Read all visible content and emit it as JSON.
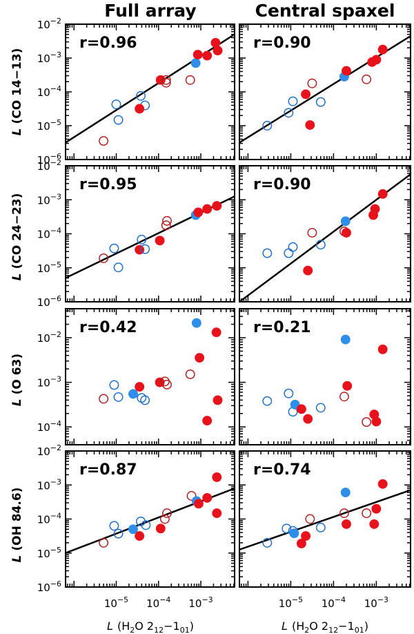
{
  "colors": {
    "red": "#e8121c",
    "blue": "#2f8ee8",
    "open_red": "#b02020",
    "open_blue": "#1f6fc8"
  },
  "column_titles": [
    "Full array",
    "Central spaxel"
  ],
  "row_ylabels": [
    {
      "var": "L",
      "text": "(CO 14−13)"
    },
    {
      "var": "L",
      "text": "(CO 24−23)"
    },
    {
      "var": "L",
      "text": "(O 63)"
    },
    {
      "var": "L",
      "text": "(OH 84.6)"
    }
  ],
  "x_axis": {
    "var": "L",
    "label_pre": "(H",
    "sub": "2",
    "label_mid": "O 2",
    "sub2": "12",
    "label_dash": "−1",
    "sub3": "01",
    "label_post": ")",
    "tick_exps": [
      "−5",
      "−4",
      "−3"
    ],
    "tick_base": "10"
  },
  "chart_data": [
    {
      "type": "scatter",
      "title": "Full array",
      "ylabel": "L (CO 14−13)",
      "r": "r=0.96",
      "xlim_log": [
        -6.2,
        -2.2
      ],
      "ylim_log": [
        -6,
        -2
      ],
      "ytick_exps": [
        "−6",
        "−5",
        "−4",
        "−3",
        "−2"
      ],
      "fit": [
        [
          -6.2,
          -5.5
        ],
        [
          -2.2,
          -2.3
        ]
      ],
      "points": [
        {
          "x": -5.3,
          "y": -5.45,
          "c": "red",
          "f": false
        },
        {
          "x": -5.0,
          "y": -4.37,
          "c": "blue",
          "f": false
        },
        {
          "x": -4.95,
          "y": -4.83,
          "c": "blue",
          "f": false
        },
        {
          "x": -4.42,
          "y": -4.12,
          "c": "blue",
          "f": false
        },
        {
          "x": -4.32,
          "y": -4.4,
          "c": "blue",
          "f": false
        },
        {
          "x": -4.45,
          "y": -4.5,
          "c": "red",
          "f": true
        },
        {
          "x": -3.95,
          "y": -3.65,
          "c": "red",
          "f": true
        },
        {
          "x": -3.82,
          "y": -3.73,
          "c": "red",
          "f": false
        },
        {
          "x": -3.82,
          "y": -3.65,
          "c": "red",
          "f": false
        },
        {
          "x": -3.25,
          "y": -3.65,
          "c": "red",
          "f": false
        },
        {
          "x": -3.12,
          "y": -3.15,
          "c": "blue",
          "f": true
        },
        {
          "x": -3.07,
          "y": -2.9,
          "c": "red",
          "f": true
        },
        {
          "x": -2.85,
          "y": -2.93,
          "c": "red",
          "f": true
        },
        {
          "x": -2.6,
          "y": -2.78,
          "c": "red",
          "f": true
        },
        {
          "x": -2.65,
          "y": -2.55,
          "c": "red",
          "f": true
        }
      ]
    },
    {
      "type": "scatter",
      "title": "Central spaxel",
      "ylabel": "L (CO 14−13)",
      "r": "r=0.90",
      "xlim_log": [
        -6.2,
        -2.2
      ],
      "ylim_log": [
        -6,
        -2
      ],
      "ytick_exps": [
        "−6",
        "−5",
        "−4",
        "−3",
        "−2"
      ],
      "fit": [
        [
          -6.2,
          -5.5
        ],
        [
          -2.2,
          -2.35
        ]
      ],
      "points": [
        {
          "x": -5.55,
          "y": -5.0,
          "c": "blue",
          "f": false
        },
        {
          "x": -5.05,
          "y": -4.62,
          "c": "blue",
          "f": false
        },
        {
          "x": -4.95,
          "y": -4.28,
          "c": "blue",
          "f": false
        },
        {
          "x": -4.65,
          "y": -4.07,
          "c": "red",
          "f": true
        },
        {
          "x": -4.55,
          "y": -4.98,
          "c": "red",
          "f": true
        },
        {
          "x": -4.5,
          "y": -3.75,
          "c": "red",
          "f": false
        },
        {
          "x": -4.3,
          "y": -4.3,
          "c": "blue",
          "f": false
        },
        {
          "x": -3.75,
          "y": -3.55,
          "c": "blue",
          "f": true
        },
        {
          "x": -3.7,
          "y": -3.38,
          "c": "red",
          "f": true
        },
        {
          "x": -3.23,
          "y": -3.63,
          "c": "red",
          "f": false
        },
        {
          "x": -3.1,
          "y": -3.12,
          "c": "red",
          "f": true
        },
        {
          "x": -3.0,
          "y": -3.05,
          "c": "red",
          "f": true
        },
        {
          "x": -2.85,
          "y": -2.75,
          "c": "red",
          "f": true
        }
      ]
    },
    {
      "type": "scatter",
      "title": "Full array",
      "ylabel": "L (CO 24−23)",
      "r": "r=0.95",
      "xlim_log": [
        -6.2,
        -2.2
      ],
      "ylim_log": [
        -6,
        -2
      ],
      "ytick_exps": [
        "−6",
        "−5",
        "−4",
        "−3",
        "−2"
      ],
      "fit": [
        [
          -6.2,
          -5.3
        ],
        [
          -2.2,
          -2.9
        ]
      ],
      "points": [
        {
          "x": -5.3,
          "y": -4.72,
          "c": "red",
          "f": false
        },
        {
          "x": -5.05,
          "y": -4.43,
          "c": "blue",
          "f": false
        },
        {
          "x": -4.95,
          "y": -4.99,
          "c": "blue",
          "f": false
        },
        {
          "x": -4.45,
          "y": -4.47,
          "c": "red",
          "f": true
        },
        {
          "x": -4.4,
          "y": -4.17,
          "c": "blue",
          "f": false
        },
        {
          "x": -4.32,
          "y": -4.45,
          "c": "blue",
          "f": false
        },
        {
          "x": -3.97,
          "y": -4.2,
          "c": "red",
          "f": true
        },
        {
          "x": -3.82,
          "y": -3.75,
          "c": "red",
          "f": false
        },
        {
          "x": -3.8,
          "y": -3.62,
          "c": "red",
          "f": false
        },
        {
          "x": -3.12,
          "y": -3.45,
          "c": "blue",
          "f": true
        },
        {
          "x": -3.06,
          "y": -3.37,
          "c": "red",
          "f": true
        },
        {
          "x": -2.85,
          "y": -3.27,
          "c": "red",
          "f": true
        },
        {
          "x": -2.62,
          "y": -3.18,
          "c": "red",
          "f": true
        }
      ]
    },
    {
      "type": "scatter",
      "title": "Central spaxel",
      "ylabel": "L (CO 24−23)",
      "r": "r=0.90",
      "xlim_log": [
        -6.2,
        -2.2
      ],
      "ylim_log": [
        -6,
        -2
      ],
      "ytick_exps": [
        "−6",
        "−5",
        "−4",
        "−3",
        "−2"
      ],
      "fit": [
        [
          -6.2,
          -6.0
        ],
        [
          -2.2,
          -2.25
        ]
      ],
      "points": [
        {
          "x": -5.55,
          "y": -4.57,
          "c": "blue",
          "f": false
        },
        {
          "x": -5.05,
          "y": -4.57,
          "c": "blue",
          "f": false
        },
        {
          "x": -4.95,
          "y": -4.39,
          "c": "blue",
          "f": false
        },
        {
          "x": -4.6,
          "y": -5.08,
          "c": "red",
          "f": true
        },
        {
          "x": -4.5,
          "y": -3.97,
          "c": "red",
          "f": false
        },
        {
          "x": -4.3,
          "y": -4.32,
          "c": "blue",
          "f": false
        },
        {
          "x": -3.75,
          "y": -3.93,
          "c": "red",
          "f": false
        },
        {
          "x": -3.7,
          "y": -3.97,
          "c": "red",
          "f": true
        },
        {
          "x": -3.72,
          "y": -3.63,
          "c": "blue",
          "f": true
        },
        {
          "x": -3.07,
          "y": -3.45,
          "c": "red",
          "f": true
        },
        {
          "x": -3.03,
          "y": -3.27,
          "c": "red",
          "f": true
        },
        {
          "x": -2.85,
          "y": -2.83,
          "c": "red",
          "f": true
        }
      ]
    },
    {
      "type": "scatter",
      "title": "Full array",
      "ylabel": "L (O 63)",
      "r": "r=0.42",
      "xlim_log": [
        -6.2,
        -2.2
      ],
      "ylim_log": [
        -4.4,
        -1.35
      ],
      "ytick_exps": [
        "−4",
        "−3",
        "−2"
      ],
      "points": [
        {
          "x": -5.3,
          "y": -3.37,
          "c": "red",
          "f": false
        },
        {
          "x": -5.05,
          "y": -3.06,
          "c": "blue",
          "f": false
        },
        {
          "x": -4.95,
          "y": -3.33,
          "c": "blue",
          "f": false
        },
        {
          "x": -4.6,
          "y": -3.26,
          "c": "blue",
          "f": true
        },
        {
          "x": -4.45,
          "y": -3.1,
          "c": "red",
          "f": true
        },
        {
          "x": -4.4,
          "y": -3.35,
          "c": "blue",
          "f": false
        },
        {
          "x": -4.32,
          "y": -3.4,
          "c": "blue",
          "f": false
        },
        {
          "x": -3.97,
          "y": -3.0,
          "c": "red",
          "f": true
        },
        {
          "x": -3.85,
          "y": -2.98,
          "c": "red",
          "f": false
        },
        {
          "x": -3.8,
          "y": -3.05,
          "c": "red",
          "f": false
        },
        {
          "x": -3.25,
          "y": -2.82,
          "c": "red",
          "f": false
        },
        {
          "x": -3.1,
          "y": -1.67,
          "c": "blue",
          "f": true
        },
        {
          "x": -3.03,
          "y": -2.45,
          "c": "red",
          "f": true
        },
        {
          "x": -2.85,
          "y": -3.86,
          "c": "red",
          "f": true
        },
        {
          "x": -2.6,
          "y": -3.4,
          "c": "red",
          "f": true
        },
        {
          "x": -2.63,
          "y": -1.88,
          "c": "red",
          "f": true
        }
      ]
    },
    {
      "type": "scatter",
      "title": "Central spaxel",
      "ylabel": "L (O 63)",
      "r": "r=0.21",
      "xlim_log": [
        -6.2,
        -2.2
      ],
      "ylim_log": [
        -4.4,
        -1.35
      ],
      "ytick_exps": [
        "−4",
        "−3",
        "−2"
      ],
      "points": [
        {
          "x": -5.55,
          "y": -3.42,
          "c": "blue",
          "f": false
        },
        {
          "x": -5.05,
          "y": -3.25,
          "c": "blue",
          "f": false
        },
        {
          "x": -4.95,
          "y": -3.66,
          "c": "blue",
          "f": false
        },
        {
          "x": -4.9,
          "y": -3.5,
          "c": "blue",
          "f": true
        },
        {
          "x": -4.75,
          "y": -3.6,
          "c": "red",
          "f": true
        },
        {
          "x": -4.6,
          "y": -3.82,
          "c": "red",
          "f": true
        },
        {
          "x": -4.3,
          "y": -3.57,
          "c": "blue",
          "f": false
        },
        {
          "x": -3.75,
          "y": -3.32,
          "c": "red",
          "f": false
        },
        {
          "x": -3.72,
          "y": -2.04,
          "c": "blue",
          "f": true
        },
        {
          "x": -3.68,
          "y": -3.08,
          "c": "red",
          "f": true
        },
        {
          "x": -3.23,
          "y": -3.89,
          "c": "red",
          "f": false
        },
        {
          "x": -3.05,
          "y": -3.72,
          "c": "red",
          "f": true
        },
        {
          "x": -3.0,
          "y": -3.88,
          "c": "red",
          "f": true
        },
        {
          "x": -2.85,
          "y": -2.26,
          "c": "red",
          "f": true
        }
      ]
    },
    {
      "type": "scatter",
      "title": "Full array",
      "ylabel": "L (OH 84.6)",
      "r": "r=0.87",
      "xlim_log": [
        -6.2,
        -2.2
      ],
      "ylim_log": [
        -6,
        -2
      ],
      "ytick_exps": [
        "−6",
        "−5",
        "−4",
        "−3",
        "−2"
      ],
      "fit": [
        [
          -6.2,
          -5.0
        ],
        [
          -2.2,
          -3.1
        ]
      ],
      "points": [
        {
          "x": -5.3,
          "y": -4.7,
          "c": "red",
          "f": false
        },
        {
          "x": -5.05,
          "y": -4.2,
          "c": "blue",
          "f": false
        },
        {
          "x": -4.95,
          "y": -4.43,
          "c": "blue",
          "f": false
        },
        {
          "x": -4.6,
          "y": -4.3,
          "c": "blue",
          "f": true
        },
        {
          "x": -4.42,
          "y": -4.07,
          "c": "blue",
          "f": false
        },
        {
          "x": -4.45,
          "y": -4.5,
          "c": "red",
          "f": true
        },
        {
          "x": -4.3,
          "y": -4.18,
          "c": "blue",
          "f": false
        },
        {
          "x": -3.95,
          "y": -4.28,
          "c": "red",
          "f": true
        },
        {
          "x": -3.85,
          "y": -4.0,
          "c": "red",
          "f": false
        },
        {
          "x": -3.8,
          "y": -3.83,
          "c": "red",
          "f": false
        },
        {
          "x": -3.22,
          "y": -3.32,
          "c": "red",
          "f": false
        },
        {
          "x": -3.1,
          "y": -3.47,
          "c": "blue",
          "f": true
        },
        {
          "x": -3.05,
          "y": -3.55,
          "c": "red",
          "f": true
        },
        {
          "x": -2.85,
          "y": -3.38,
          "c": "red",
          "f": true
        },
        {
          "x": -2.62,
          "y": -3.83,
          "c": "red",
          "f": true
        },
        {
          "x": -2.62,
          "y": -2.77,
          "c": "red",
          "f": true
        }
      ]
    },
    {
      "type": "scatter",
      "title": "Central spaxel",
      "ylabel": "L (OH 84.6)",
      "r": "r=0.74",
      "xlim_log": [
        -6.2,
        -2.2
      ],
      "ylim_log": [
        -6,
        -2
      ],
      "ytick_exps": [
        "−6",
        "−5",
        "−4",
        "−3",
        "−2"
      ],
      "fit": [
        [
          -6.2,
          -4.9
        ],
        [
          -2.2,
          -3.15
        ]
      ],
      "points": [
        {
          "x": -5.55,
          "y": -4.7,
          "c": "blue",
          "f": false
        },
        {
          "x": -5.1,
          "y": -4.28,
          "c": "blue",
          "f": false
        },
        {
          "x": -4.95,
          "y": -4.35,
          "c": "blue",
          "f": false
        },
        {
          "x": -4.92,
          "y": -4.42,
          "c": "blue",
          "f": true
        },
        {
          "x": -4.75,
          "y": -4.72,
          "c": "red",
          "f": true
        },
        {
          "x": -4.65,
          "y": -4.5,
          "c": "red",
          "f": true
        },
        {
          "x": -4.55,
          "y": -4.0,
          "c": "red",
          "f": false
        },
        {
          "x": -4.3,
          "y": -4.25,
          "c": "blue",
          "f": false
        },
        {
          "x": -3.75,
          "y": -3.83,
          "c": "red",
          "f": false
        },
        {
          "x": -3.72,
          "y": -3.22,
          "c": "blue",
          "f": true
        },
        {
          "x": -3.7,
          "y": -4.15,
          "c": "red",
          "f": true
        },
        {
          "x": -3.23,
          "y": -3.83,
          "c": "red",
          "f": false
        },
        {
          "x": -3.05,
          "y": -4.15,
          "c": "red",
          "f": true
        },
        {
          "x": -3.0,
          "y": -3.7,
          "c": "red",
          "f": true
        },
        {
          "x": -2.85,
          "y": -2.97,
          "c": "red",
          "f": true
        }
      ]
    }
  ]
}
